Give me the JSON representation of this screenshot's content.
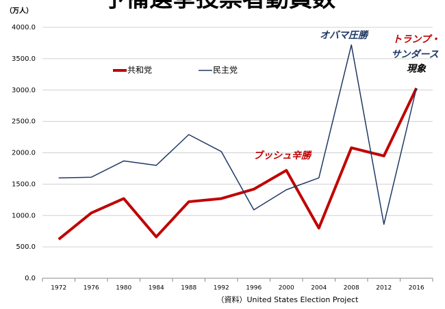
{
  "chart_data": {
    "type": "line",
    "title": "予備選挙投票者動員数",
    "y_unit_label": "（万人）",
    "source": "（資料）United States Election Project",
    "categories": [
      "1972",
      "1976",
      "1980",
      "1984",
      "1988",
      "1992",
      "1996",
      "2000",
      "2004",
      "2008",
      "2012",
      "2016"
    ],
    "series": [
      {
        "name": "共和党",
        "color": "#c00000",
        "width": 4,
        "values": [
          620,
          1040,
          1270,
          660,
          1220,
          1270,
          1420,
          1720,
          800,
          2080,
          1950,
          3030
        ]
      },
      {
        "name": "民主党",
        "color": "#1f3864",
        "width": 1.5,
        "values": [
          1600,
          1610,
          1870,
          1800,
          2290,
          2020,
          1090,
          1410,
          1600,
          3720,
          860,
          3030
        ]
      }
    ],
    "ylim": [
      0,
      4000
    ],
    "yticks": [
      {
        "value": 0,
        "label": "0.0"
      },
      {
        "value": 500,
        "label": "500.0"
      },
      {
        "value": 1000,
        "label": "1000.0"
      },
      {
        "value": 1500,
        "label": "1500.0"
      },
      {
        "value": 2000,
        "label": "2000.0"
      },
      {
        "value": 2500,
        "label": "2500.0"
      },
      {
        "value": 3000,
        "label": "3000.0"
      },
      {
        "value": 3500,
        "label": "3500.0"
      },
      {
        "value": 4000,
        "label": "4000.0"
      }
    ],
    "grid": true,
    "annotations": [
      {
        "text": "オバマ圧勝",
        "color": "#1f3864"
      },
      {
        "text": "ブッシュ辛勝",
        "color": "#c00000"
      },
      {
        "text": "トランプ・",
        "color": "#c00000"
      },
      {
        "text": "サンダース",
        "color": "#1f3864"
      },
      {
        "text": "現象",
        "color": "#000000"
      }
    ]
  }
}
